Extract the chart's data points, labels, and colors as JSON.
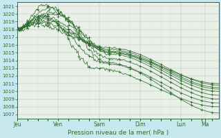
{
  "bg_color": "#c8e8f0",
  "plot_bg_color": "#e8f0e8",
  "grid_color_major": "#b0b0b0",
  "grid_color_minor": "#d0d0d0",
  "line_color": "#2d6a2d",
  "marker_color": "#2d6a2d",
  "ylabel_ticks": [
    1007,
    1008,
    1009,
    1010,
    1011,
    1012,
    1013,
    1014,
    1015,
    1016,
    1017,
    1018,
    1019,
    1020,
    1021
  ],
  "xlabel": "Pression niveau de la mer( hPa )",
  "xtick_labels": [
    "Jeu",
    "Ven",
    "Sam",
    "Dim",
    "Lun",
    "Ma"
  ],
  "ylim": [
    1006.5,
    1021.5
  ],
  "xlim": [
    0,
    118
  ],
  "xtick_positions": [
    0,
    24,
    48,
    72,
    96,
    110
  ],
  "figsize": [
    3.2,
    2.0
  ],
  "dpi": 100
}
